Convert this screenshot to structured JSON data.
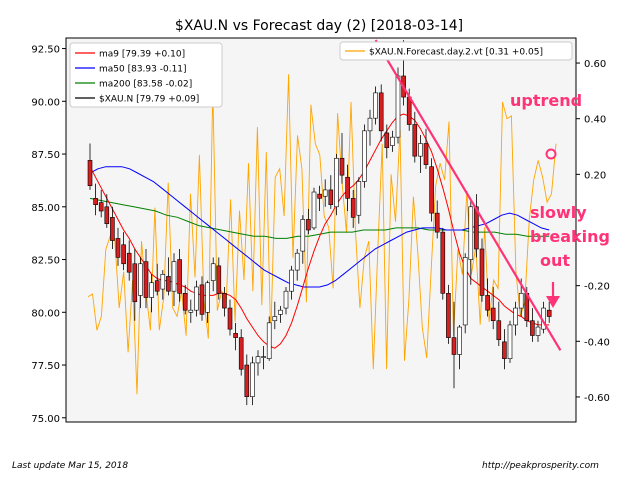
{
  "chart_data": {
    "type": "candlestick",
    "title": "$XAU.N vs Forecast day (2)  [2018-03-14]",
    "y_left": {
      "ticks": [
        "75.00",
        "77.50",
        "80.00",
        "82.50",
        "85.00",
        "87.50",
        "90.00",
        "92.50"
      ],
      "range": [
        74.8,
        93.0
      ]
    },
    "y_right": {
      "ticks": [
        "-0.60",
        "-0.40",
        "-0.20",
        "0.20",
        "0.40",
        "0.60"
      ],
      "range": [
        -0.69,
        0.69
      ]
    },
    "legend_left": [
      {
        "label": "ma9 [79.39 +0.10]",
        "color": "#ff0000"
      },
      {
        "label": "ma50 [83.93 -0.11]",
        "color": "#0000ff"
      },
      {
        "label": "ma200 [83.58 -0.02]",
        "color": "#008000"
      },
      {
        "label": "$XAU.N [79.79 +0.09]",
        "color": "#000000"
      }
    ],
    "legend_right": [
      {
        "label": "$XAU.N.Forecast.day.2.vt [0.31 +0.05]",
        "color": "#ffa500"
      }
    ],
    "candles": [
      [
        87.2,
        88.0,
        85.8,
        86.0
      ],
      [
        85.4,
        86.1,
        84.6,
        85.1
      ],
      [
        85.2,
        85.8,
        84.5,
        84.8
      ],
      [
        85.0,
        85.6,
        84.0,
        84.2
      ],
      [
        84.5,
        85.0,
        83.0,
        83.4
      ],
      [
        83.5,
        84.0,
        82.2,
        82.6
      ],
      [
        83.2,
        83.8,
        82.0,
        82.3
      ],
      [
        82.8,
        83.4,
        81.5,
        81.9
      ],
      [
        82.3,
        83.0,
        79.6,
        80.5
      ],
      [
        80.8,
        82.6,
        80.2,
        82.3
      ],
      [
        82.4,
        83.0,
        80.2,
        80.7
      ],
      [
        80.7,
        81.8,
        80.0,
        81.4
      ],
      [
        81.5,
        82.3,
        80.8,
        81.0
      ],
      [
        81.1,
        82.0,
        80.6,
        81.8
      ],
      [
        81.7,
        82.6,
        80.8,
        81.0
      ],
      [
        81.0,
        82.8,
        80.3,
        82.4
      ],
      [
        82.5,
        83.0,
        80.5,
        80.9
      ],
      [
        80.9,
        81.3,
        79.9,
        80.1
      ],
      [
        80.0,
        80.6,
        79.5,
        80.1
      ],
      [
        80.1,
        81.5,
        79.8,
        81.2
      ],
      [
        81.3,
        81.7,
        79.6,
        79.9
      ],
      [
        80.0,
        81.5,
        79.5,
        81.4
      ],
      [
        81.5,
        82.6,
        81.0,
        82.3
      ],
      [
        82.2,
        82.6,
        80.6,
        80.9
      ],
      [
        80.9,
        81.2,
        79.8,
        80.2
      ],
      [
        80.2,
        80.6,
        78.9,
        79.2
      ],
      [
        79.0,
        79.5,
        78.2,
        78.8
      ],
      [
        78.8,
        79.2,
        77.0,
        77.3
      ],
      [
        77.5,
        78.0,
        75.6,
        76.0
      ],
      [
        76.0,
        77.9,
        75.6,
        77.6
      ],
      [
        77.6,
        78.2,
        77.0,
        77.9
      ],
      [
        77.9,
        78.4,
        77.3,
        77.9
      ],
      [
        77.8,
        79.8,
        77.7,
        79.5
      ],
      [
        79.6,
        80.5,
        79.2,
        79.8
      ],
      [
        79.9,
        80.3,
        79.5,
        80.1
      ],
      [
        80.2,
        81.2,
        79.9,
        81.0
      ],
      [
        81.0,
        82.2,
        80.6,
        82.0
      ],
      [
        82.0,
        83.0,
        81.5,
        82.8
      ],
      [
        82.9,
        84.6,
        82.3,
        84.4
      ],
      [
        84.4,
        84.9,
        83.7,
        83.9
      ],
      [
        84.0,
        85.9,
        83.9,
        85.7
      ],
      [
        85.6,
        86.0,
        84.8,
        85.4
      ],
      [
        85.5,
        86.3,
        85.0,
        85.8
      ],
      [
        85.8,
        86.5,
        84.9,
        85.1
      ],
      [
        85.0,
        87.5,
        84.6,
        87.3
      ],
      [
        87.3,
        88.5,
        86.1,
        86.5
      ],
      [
        86.4,
        87.0,
        84.8,
        85.4
      ],
      [
        85.4,
        85.8,
        84.0,
        84.5
      ],
      [
        84.6,
        86.4,
        84.2,
        86.2
      ],
      [
        86.2,
        88.9,
        85.9,
        88.6
      ],
      [
        88.6,
        89.6,
        87.9,
        89.2
      ],
      [
        89.2,
        90.7,
        88.9,
        90.4
      ],
      [
        90.4,
        90.8,
        88.1,
        88.6
      ],
      [
        88.5,
        88.9,
        87.3,
        87.8
      ],
      [
        87.9,
        88.6,
        87.6,
        88.3
      ],
      [
        88.3,
        91.6,
        88.0,
        91.2
      ],
      [
        91.2,
        92.9,
        89.8,
        90.2
      ],
      [
        90.2,
        90.6,
        88.6,
        88.9
      ],
      [
        88.9,
        89.5,
        87.1,
        87.4
      ],
      [
        87.4,
        88.4,
        86.6,
        88.0
      ],
      [
        88.0,
        88.7,
        86.8,
        87.0
      ],
      [
        86.9,
        87.3,
        84.3,
        84.7
      ],
      [
        84.7,
        85.3,
        83.5,
        83.8
      ],
      [
        83.8,
        84.0,
        80.6,
        80.9
      ],
      [
        80.9,
        81.3,
        78.5,
        78.8
      ],
      [
        78.8,
        80.5,
        76.4,
        78.0
      ],
      [
        78.0,
        79.4,
        77.3,
        79.3
      ],
      [
        79.4,
        82.8,
        79.0,
        82.6
      ],
      [
        82.5,
        85.3,
        81.3,
        85.0
      ],
      [
        85.0,
        85.6,
        82.6,
        83.0
      ],
      [
        83.0,
        83.5,
        80.5,
        80.8
      ],
      [
        80.8,
        81.6,
        79.8,
        80.1
      ],
      [
        80.2,
        81.2,
        79.2,
        79.6
      ],
      [
        79.6,
        80.5,
        78.4,
        78.7
      ],
      [
        78.6,
        79.2,
        77.3,
        77.8
      ],
      [
        77.8,
        79.6,
        77.6,
        79.4
      ],
      [
        79.4,
        80.5,
        78.9,
        80.2
      ],
      [
        80.2,
        81.6,
        79.8,
        80.9
      ],
      [
        80.9,
        81.2,
        79.3,
        79.6
      ],
      [
        79.6,
        80.2,
        78.6,
        78.9
      ],
      [
        78.9,
        79.6,
        78.6,
        79.3
      ],
      [
        79.2,
        80.5,
        79.0,
        80.2
      ],
      [
        80.1,
        80.5,
        79.5,
        79.8
      ]
    ],
    "ma9": [
      86.9,
      86.4,
      85.9,
      85.4,
      84.9,
      84.4,
      83.9,
      83.5,
      83.0,
      82.6,
      82.2,
      81.8,
      81.6,
      81.5,
      81.5,
      81.4,
      81.3,
      81.2,
      81.0,
      80.9,
      80.8,
      80.8,
      80.8,
      80.9,
      80.9,
      80.8,
      80.6,
      80.2,
      79.7,
      79.3,
      78.9,
      78.6,
      78.4,
      78.3,
      78.5,
      78.9,
      79.5,
      80.3,
      81.2,
      82.1,
      82.9,
      83.6,
      84.2,
      84.6,
      85.1,
      85.5,
      85.8,
      86.0,
      86.3,
      86.7,
      87.2,
      87.7,
      88.2,
      88.6,
      89.0,
      89.3,
      89.4,
      89.3,
      89.1,
      88.7,
      88.2,
      87.6,
      86.8,
      85.9,
      84.9,
      83.8,
      82.8,
      82.1,
      81.6,
      81.4,
      81.2,
      81.0,
      80.8,
      80.6,
      80.3,
      80.1,
      79.9,
      79.8,
      79.6,
      79.5,
      79.4,
      79.4,
      79.4
    ],
    "ma50": [
      86.6,
      86.8,
      86.9,
      86.9,
      86.9,
      86.8,
      86.6,
      86.4,
      86.2,
      85.9,
      85.6,
      85.3,
      85.0,
      84.7,
      84.4,
      84.1,
      83.8,
      83.5,
      83.2,
      82.9,
      82.6,
      82.3,
      82.0,
      81.8,
      81.6,
      81.4,
      81.3,
      81.2,
      81.2,
      81.2,
      81.3,
      81.5,
      81.8,
      82.1,
      82.4,
      82.7,
      83.0,
      83.2,
      83.4,
      83.6,
      83.8,
      83.9,
      84.0,
      84.0,
      84.0,
      83.9,
      83.9,
      83.9,
      84.0,
      84.1,
      84.2,
      84.4,
      84.6,
      84.7,
      84.6,
      84.4,
      84.2,
      84.0,
      83.9
    ],
    "ma200": [
      85.4,
      85.3,
      85.2,
      85.1,
      85.0,
      84.9,
      84.8,
      84.6,
      84.5,
      84.3,
      84.1,
      84.0,
      83.9,
      83.8,
      83.7,
      83.6,
      83.6,
      83.5,
      83.5,
      83.6,
      83.6,
      83.7,
      83.8,
      83.8,
      83.8,
      83.9,
      83.9,
      83.9,
      84.0,
      84.0,
      84.0,
      83.9,
      83.9,
      83.9,
      83.9,
      83.8,
      83.8,
      83.8,
      83.7,
      83.7,
      83.6,
      83.6,
      83.6
    ],
    "forecast": [
      -0.24,
      -0.23,
      -0.36,
      -0.31,
      -0.07,
      -0.02,
      -0.03,
      -0.28,
      -0.15,
      -0.44,
      -0.18,
      -0.59,
      -0.04,
      -0.22,
      -0.36,
      0.08,
      -0.36,
      -0.24,
      0.17,
      -0.28,
      -0.31,
      -0.22,
      -0.38,
      0.13,
      -0.17,
      0.27,
      -0.25,
      -0.39,
      0.51,
      -0.29,
      -0.22,
      -0.26,
      0.11,
      -0.33,
      0.07,
      -0.18,
      0.24,
      -0.22,
      0.37,
      -0.27,
      0.28,
      -0.39,
      0.19,
      0.22,
      0.05,
      0.56,
      -0.1,
      0.34,
      0.22,
      -0.26,
      0.45,
      0.31,
      0.27,
      0.05,
      0.01,
      -0.21,
      0.42,
      0.17,
      -0.01,
      0.46,
      0.0,
      -0.28,
      -0.1,
      -0.04,
      -0.5,
      -0.08,
      0.31,
      -0.5,
      0.2,
      0.03,
      0.36,
      -0.47,
      -0.25,
      0.12,
      -0.08,
      -0.35,
      -0.46,
      -0.14,
      0.16,
      0.24,
      0.18,
      0.39,
      -0.38,
      -0.07,
      -0.16,
      0.14,
      -0.16,
      -0.06,
      -0.34,
      0.01,
      -0.33,
      -0.18,
      -0.21,
      0.46,
      0.4,
      0.41,
      -0.15,
      -0.31,
      -0.26,
      0.04,
      0.18,
      0.25,
      0.19,
      0.1,
      0.13,
      0.31
    ],
    "trendline": {
      "from_x": 51,
      "from_y": 92.9,
      "to_x": 84,
      "to_y": 78.2
    },
    "annotations": [
      {
        "text": "uptrend",
        "color": "#ff3377"
      },
      {
        "text": "slowly",
        "color": "#ff3377"
      },
      {
        "text": "breaking",
        "color": "#ff3377"
      },
      {
        "text": "out",
        "color": "#ff3377"
      }
    ],
    "colors": {
      "up": "#ffffff",
      "down": "#d42020",
      "forecast": "#ffa500",
      "trend": "#ff3377",
      "plot_bg": "#f5f5f5"
    }
  },
  "footer": {
    "left": "Last update Mar 15, 2018",
    "right": "http://peakprosperity.com"
  }
}
